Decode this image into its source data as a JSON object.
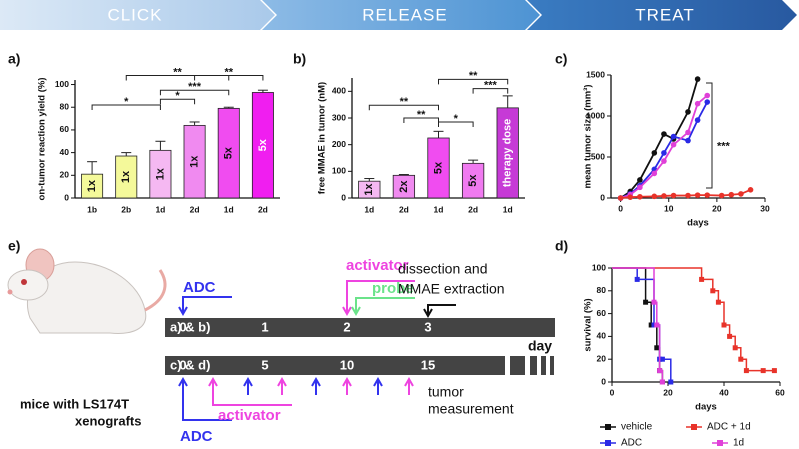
{
  "banner": [
    "CLICK",
    "RELEASE",
    "TREAT"
  ],
  "chart_data": [
    {
      "type": "bar",
      "label": "a)",
      "ylabel": "on-tumor reaction yield (%)",
      "categories": [
        "1b",
        "2b",
        "1d",
        "2d",
        "1d",
        "2d"
      ],
      "values": [
        21,
        37,
        42,
        64,
        79,
        93
      ],
      "errors": [
        11,
        3,
        8,
        3,
        1,
        2
      ],
      "bar_labels": [
        "1x",
        "1x",
        "1x",
        "1x",
        "5x",
        "5x"
      ],
      "colors": [
        "#f4f99a",
        "#f4f99a",
        "#f5b8f2",
        "#f08af0",
        "#f04cf0",
        "#f01ef0"
      ],
      "ylim": [
        0,
        104
      ],
      "yticks": [
        0,
        20,
        40,
        60,
        80,
        100
      ],
      "annotations": [
        "*",
        "**",
        "***",
        "*",
        "**"
      ]
    },
    {
      "type": "bar",
      "label": "b)",
      "ylabel": "free MMAE in tumor (nM)",
      "categories": [
        "1d",
        "2d",
        "1d",
        "2d",
        "1d"
      ],
      "values": [
        63,
        85,
        225,
        130,
        338
      ],
      "errors": [
        10,
        3,
        25,
        12,
        45
      ],
      "bar_labels": [
        "1x",
        "2x",
        "5x",
        "5x",
        "therapy dose"
      ],
      "colors": [
        "#f5b8f2",
        "#f08af0",
        "#f04cf0",
        "#f07af0",
        "#c63ad6"
      ],
      "ylim": [
        0,
        450
      ],
      "yticks": [
        0,
        100,
        200,
        300,
        400
      ],
      "annotations": [
        "**",
        "**",
        "*",
        "***",
        "**"
      ]
    },
    {
      "type": "line",
      "label": "c)",
      "ylabel": "mean tumor size (mm³)",
      "xlabel": "days",
      "x": [
        0,
        2,
        4,
        7,
        9,
        11,
        14,
        16,
        18,
        21,
        23,
        25,
        27
      ],
      "series": [
        {
          "name": "vehicle",
          "color": "#111111",
          "values": [
            0,
            80,
            220,
            550,
            780,
            720,
            1050,
            1450,
            null,
            null,
            null,
            null,
            null
          ]
        },
        {
          "name": "ADC",
          "color": "#2a2ae6",
          "values": [
            0,
            50,
            150,
            350,
            550,
            750,
            700,
            950,
            1170,
            null,
            null,
            null,
            null
          ]
        },
        {
          "name": "1d",
          "color": "#e040d8",
          "values": [
            0,
            40,
            130,
            300,
            450,
            650,
            800,
            1150,
            1250,
            null,
            null,
            null,
            null
          ]
        },
        {
          "name": "ADC + 1d",
          "color": "#e8332a",
          "values": [
            0,
            10,
            15,
            20,
            25,
            30,
            30,
            35,
            35,
            30,
            40,
            50,
            100
          ]
        }
      ],
      "xlim": [
        -2,
        30
      ],
      "xticks": [
        0,
        10,
        20,
        30
      ],
      "ylim": [
        0,
        1500
      ],
      "yticks": [
        0,
        500,
        1000,
        1500
      ],
      "annotations": [
        "***"
      ]
    },
    {
      "type": "step",
      "label": "d)",
      "ylabel": "survival (%)",
      "xlabel": "days",
      "series": [
        {
          "name": "vehicle",
          "color": "#111111",
          "x": [
            0,
            12,
            14,
            16,
            17,
            18
          ],
          "values": [
            100,
            70,
            50,
            30,
            10,
            0
          ]
        },
        {
          "name": "ADC",
          "color": "#2a2ae6",
          "x": [
            0,
            9,
            15,
            17,
            18,
            21
          ],
          "values": [
            100,
            90,
            50,
            20,
            20,
            0
          ]
        },
        {
          "name": "ADC + 1d",
          "color": "#e8332a",
          "x": [
            0,
            32,
            36,
            38,
            40,
            42,
            44,
            46,
            48,
            54,
            58
          ],
          "values": [
            100,
            90,
            80,
            70,
            50,
            40,
            30,
            20,
            10,
            10,
            10
          ]
        },
        {
          "name": "1d",
          "color": "#e040d8",
          "x": [
            0,
            15,
            16,
            17,
            18
          ],
          "values": [
            100,
            70,
            50,
            10,
            0
          ]
        }
      ],
      "xlim": [
        0,
        60
      ],
      "xticks": [
        0,
        20,
        40,
        60
      ],
      "ylim": [
        0,
        100
      ],
      "yticks": [
        0,
        20,
        40,
        60,
        80,
        100
      ]
    }
  ],
  "diagram": {
    "label": "e)",
    "row_ab": {
      "label": "a) & b)",
      "ticks": [
        0,
        1,
        2,
        3
      ]
    },
    "row_cd": {
      "label": "c) & d)",
      "ticks": [
        0,
        5,
        10,
        15
      ],
      "unit": "day"
    },
    "events": {
      "adc_top": "ADC",
      "activator_top": "activator",
      "probe": "probe",
      "dissection": [
        "dissection and",
        "MMAE extraction"
      ],
      "activator_bottom": "activator",
      "adc_bottom": "ADC",
      "measurement": [
        "tumor",
        "measurement"
      ]
    },
    "mice": [
      "mice with LS174T",
      "xenografts"
    ]
  }
}
